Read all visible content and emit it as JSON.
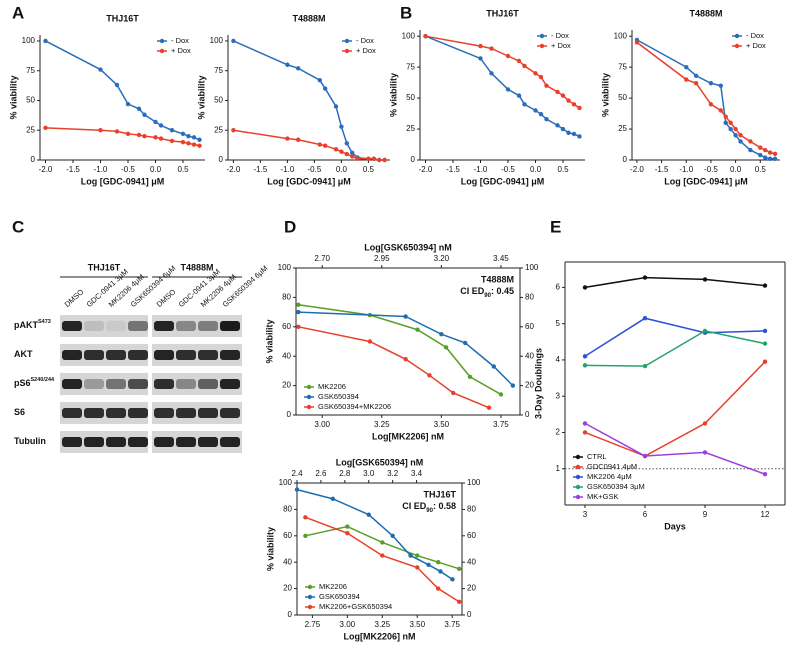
{
  "panel_letters": [
    "A",
    "B",
    "C",
    "D",
    "E"
  ],
  "blot": {
    "groups": [
      "THJ16T",
      "T4888M"
    ],
    "lanes": [
      "DMSO",
      "GDC-0941 3μM",
      "MK2206 4μM",
      "GSK650394 6μM",
      "DMSO",
      "GDC-0941 3μM",
      "MK2206 4μM",
      "GSK650394 6μM"
    ],
    "rows": [
      {
        "name": "pAKT",
        "sup": "S473"
      },
      {
        "name": "AKT"
      },
      {
        "name": "pS6",
        "sup": "S240/244"
      },
      {
        "name": "S6"
      },
      {
        "name": "Tubulin"
      }
    ]
  },
  "chart_data": [
    {
      "type": "line",
      "title": "THJ16T",
      "xlabel": "Log [GDC-0941] μM",
      "ylabel": "% viability",
      "legend": "upper right",
      "xlim": [
        -2.1,
        0.9
      ],
      "xticks": [
        {
          "value": -2,
          "label": "-2.0"
        },
        -1.5,
        {
          "value": -1,
          "label": "-1.0"
        },
        -0.5,
        {
          "value": 0,
          "label": "0.0"
        },
        0.5
      ],
      "ylim": [
        0,
        105
      ],
      "yticks": [
        0,
        25,
        50,
        75,
        100
      ],
      "x": [
        -2.0,
        -1.0,
        -0.7,
        -0.5,
        -0.3,
        -0.2,
        0.0,
        0.1,
        0.3,
        0.5,
        0.6,
        0.7,
        0.8
      ],
      "series": [
        {
          "name": "- Dox",
          "color": "#2a6ebb",
          "values": [
            100,
            76,
            63,
            47,
            43,
            38,
            32,
            29,
            25,
            22,
            20,
            19,
            17
          ]
        },
        {
          "name": "+ Dox",
          "color": "#e8402a",
          "values": [
            27,
            25,
            24,
            22,
            21,
            20,
            19,
            18,
            16,
            15,
            14,
            13,
            12
          ]
        }
      ]
    },
    {
      "type": "line",
      "title": "T4888M",
      "xlabel": "Log [GDC-0941] μM",
      "ylabel": "% viability",
      "legend": "upper right",
      "xlim": [
        -2.1,
        0.9
      ],
      "xticks": [
        {
          "value": -2,
          "label": "-2.0"
        },
        -1.5,
        {
          "value": -1,
          "label": "-1.0"
        },
        -0.5,
        {
          "value": 0,
          "label": "0.0"
        },
        0.5
      ],
      "ylim": [
        0,
        105
      ],
      "yticks": [
        0,
        25,
        50,
        75,
        100
      ],
      "x": [
        -2.0,
        -1.0,
        -0.8,
        -0.4,
        -0.3,
        -0.1,
        0.0,
        0.1,
        0.2,
        0.3,
        0.5,
        0.6,
        0.7,
        0.8
      ],
      "series": [
        {
          "name": "- Dox",
          "color": "#2a6ebb",
          "values": [
            100,
            80,
            77,
            67,
            60,
            45,
            28,
            14,
            6,
            2,
            1,
            1,
            0,
            0
          ]
        },
        {
          "name": "+ Dox",
          "color": "#e8402a",
          "values": [
            25,
            18,
            17,
            13,
            12,
            9,
            7,
            5,
            3,
            1,
            1,
            1,
            0,
            0
          ]
        }
      ]
    },
    {
      "type": "line",
      "title": "THJ16T",
      "xlabel": "Log [GDC-0941] μM",
      "ylabel": "% viability",
      "legend": "upper right",
      "xlim": [
        -2.1,
        0.9
      ],
      "xticks": [
        {
          "value": -2,
          "label": "-2.0"
        },
        -1.5,
        {
          "value": -1,
          "label": "-1.0"
        },
        -0.5,
        {
          "value": 0,
          "label": "0.0"
        },
        0.5
      ],
      "ylim": [
        0,
        105
      ],
      "yticks": [
        0,
        25,
        50,
        75,
        100
      ],
      "x": [
        -2.0,
        -1.0,
        -0.8,
        -0.5,
        -0.3,
        -0.2,
        0.0,
        0.1,
        0.2,
        0.4,
        0.5,
        0.6,
        0.7,
        0.8
      ],
      "series": [
        {
          "name": "- Dox",
          "color": "#2a6ebb",
          "values": [
            100,
            82,
            70,
            57,
            52,
            45,
            40,
            37,
            33,
            28,
            25,
            22,
            21,
            19
          ]
        },
        {
          "name": "+ Dox",
          "color": "#e8402a",
          "values": [
            100,
            92,
            90,
            84,
            80,
            76,
            70,
            67,
            60,
            55,
            52,
            48,
            45,
            42
          ]
        }
      ]
    },
    {
      "type": "line",
      "title": "T4888M",
      "xlabel": "Log [GDC-0941] μM",
      "ylabel": "% viability",
      "legend": "upper right",
      "xlim": [
        -2.1,
        0.9
      ],
      "xticks": [
        {
          "value": -2,
          "label": "-2.0"
        },
        -1.5,
        {
          "value": -1,
          "label": "-1.0"
        },
        -0.5,
        {
          "value": 0,
          "label": "0.0"
        },
        0.5
      ],
      "ylim": [
        0,
        105
      ],
      "yticks": [
        0,
        25,
        50,
        75,
        100
      ],
      "x": [
        -2.0,
        -1.0,
        -0.8,
        -0.5,
        -0.3,
        -0.2,
        -0.1,
        0.0,
        0.1,
        0.3,
        0.5,
        0.6,
        0.7,
        0.8
      ],
      "series": [
        {
          "name": "- Dox",
          "color": "#2a6ebb",
          "values": [
            97,
            75,
            68,
            62,
            60,
            30,
            25,
            20,
            15,
            8,
            4,
            2,
            1,
            1
          ]
        },
        {
          "name": "+ Dox",
          "color": "#e8402a",
          "values": [
            95,
            65,
            62,
            45,
            40,
            35,
            30,
            25,
            20,
            15,
            10,
            8,
            6,
            5
          ]
        }
      ]
    },
    {
      "type": "line",
      "xlabel": "Log[MK2206] nM",
      "x2label": "Log[GSK650394] nM",
      "ylabel": "% viability",
      "legend": "lower left",
      "frame": true,
      "annotation": {
        "cell": "T4888M",
        "ci": "CI ED",
        "ci_sub": "90",
        "ci_value": ": 0.45"
      },
      "xlim": [
        2.89,
        3.83
      ],
      "xticks": [
        {
          "value": 3,
          "label": "3.00"
        },
        3.25,
        {
          "value": 3.5,
          "label": "3.50"
        },
        3.75
      ],
      "x2lim": [
        2.59,
        3.53
      ],
      "x2ticks": [
        {
          "value": 2.7,
          "label": "2.70"
        },
        2.95,
        {
          "value": 3.2,
          "label": "3.20"
        },
        3.45
      ],
      "ylim": [
        0,
        100
      ],
      "yticks": [
        0,
        20,
        40,
        60,
        80,
        100
      ],
      "y2lim": [
        0,
        100
      ],
      "y2ticks": [
        0,
        20,
        40,
        60,
        80,
        100
      ],
      "series": [
        {
          "name": "MK2206",
          "color": "#5a9e2a",
          "x": [
            2.9,
            3.2,
            3.4,
            3.52,
            3.62,
            3.75
          ],
          "values": [
            75,
            68,
            58,
            46,
            26,
            14
          ]
        },
        {
          "name": "GSK650394",
          "color": "#1f6db0",
          "axis": "x2",
          "x": [
            2.6,
            3.05,
            3.2,
            3.3,
            3.42,
            3.5
          ],
          "values": [
            70,
            67,
            55,
            49,
            33,
            20
          ]
        },
        {
          "name": "GSK650394+MK2206",
          "color": "#e8402a",
          "x": [
            2.9,
            3.2,
            3.35,
            3.45,
            3.55,
            3.7
          ],
          "values": [
            60,
            50,
            38,
            27,
            15,
            5
          ]
        }
      ]
    },
    {
      "type": "line",
      "xlabel": "Log[MK2206] nM",
      "x2label": "Log[GSK650394] nM",
      "ylabel": "% viability",
      "legend": "lower left",
      "frame": true,
      "annotation": {
        "cell": "THJ16T",
        "ci": "CI ED",
        "ci_sub": "90",
        "ci_value": ": 0.58"
      },
      "xlim": [
        2.64,
        3.82
      ],
      "xticks": [
        2.75,
        {
          "value": 3,
          "label": "3.00"
        },
        3.25,
        {
          "value": 3.5,
          "label": "3.50"
        },
        3.75
      ],
      "x2lim": [
        2.4,
        3.78
      ],
      "x2ticks": [
        2.4,
        2.6,
        2.8,
        {
          "value": 3,
          "label": "3.0"
        },
        3.2,
        3.4
      ],
      "ylim": [
        0,
        100
      ],
      "yticks": [
        0,
        20,
        40,
        60,
        80,
        100
      ],
      "y2lim": [
        0,
        100
      ],
      "y2ticks": [
        0,
        20,
        40,
        60,
        80,
        100
      ],
      "series": [
        {
          "name": "MK2206",
          "color": "#5a9e2a",
          "x": [
            2.7,
            3.0,
            3.25,
            3.5,
            3.65,
            3.8
          ],
          "values": [
            60,
            67,
            55,
            45,
            40,
            35
          ]
        },
        {
          "name": "GSK650394",
          "color": "#1f6db0",
          "axis": "x2",
          "x": [
            2.4,
            2.7,
            3.0,
            3.2,
            3.35,
            3.5,
            3.6,
            3.7
          ],
          "values": [
            95,
            88,
            76,
            60,
            45,
            38,
            33,
            27
          ]
        },
        {
          "name": "MK2206+GSK650394",
          "color": "#e8402a",
          "x": [
            2.7,
            3.0,
            3.25,
            3.5,
            3.65,
            3.8
          ],
          "values": [
            74,
            62,
            45,
            36,
            20,
            10
          ]
        }
      ]
    },
    {
      "type": "line",
      "xlabel": "Days",
      "ylabel": "3-Day Doublings",
      "legend": "lower left",
      "frame": true,
      "reference_line": 1,
      "xlim": [
        2,
        13
      ],
      "xticks": [
        3,
        6,
        9,
        12
      ],
      "ylim": [
        0,
        6.7
      ],
      "yticks": [
        1,
        2,
        3,
        4,
        5,
        6
      ],
      "x": [
        3,
        6,
        9,
        12
      ],
      "series": [
        {
          "name": "CTRL",
          "color": "#111111",
          "values": [
            6.0,
            6.27,
            6.22,
            6.05
          ]
        },
        {
          "name": "GDC0941 4μM",
          "color": "#e8402a",
          "values": [
            2.0,
            1.35,
            2.25,
            3.95
          ]
        },
        {
          "name": "MK2206 4μM",
          "color": "#2a52d9",
          "values": [
            4.1,
            5.15,
            4.75,
            4.8
          ]
        },
        {
          "name": "GSK650394 3μM",
          "color": "#26a36a",
          "values": [
            3.85,
            3.83,
            4.8,
            4.45
          ]
        },
        {
          "name": "MK+GSK",
          "color": "#9b3fe0",
          "values": [
            2.25,
            1.35,
            1.45,
            0.85
          ]
        }
      ]
    }
  ]
}
